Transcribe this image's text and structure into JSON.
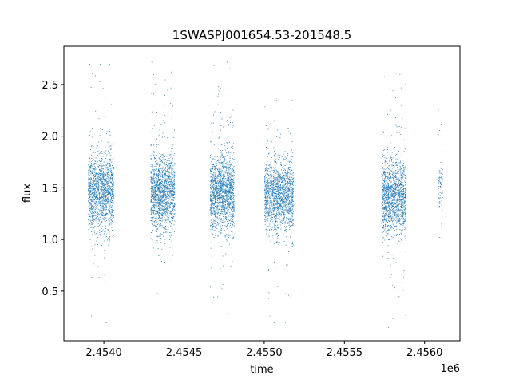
{
  "chart_data": {
    "type": "scatter",
    "title": "1SWASPJ001654.53-201548.5",
    "xlabel": "time",
    "ylabel": "flux",
    "x_offset_label": "1e6",
    "x_tick_labels": [
      "2.4540",
      "2.4545",
      "2.4550",
      "2.4555",
      "2.4560"
    ],
    "x_ticks": [
      2453999.5,
      2454499.5,
      2454999.5,
      2455499.5,
      2455999.5
    ],
    "y_ticks": [
      0.5,
      1.0,
      1.5,
      2.0,
      2.5
    ],
    "y_tick_labels": [
      "0.5",
      "1.0",
      "1.5",
      "2.0",
      "2.5"
    ],
    "xlim": [
      2453750,
      2456220
    ],
    "ylim": [
      0.02,
      2.87
    ],
    "grid": false,
    "point_color": "#1f77b4",
    "series": [
      {
        "segments": [
          {
            "t_start": 2453900,
            "t_end": 2454060,
            "center": 1.45,
            "spread": 0.22,
            "tail_max": 2.7,
            "tail_min": 0.15,
            "points": 1500
          },
          {
            "t_start": 2454290,
            "t_end": 2454440,
            "center": 1.45,
            "spread": 0.22,
            "tail_max": 2.72,
            "tail_min": 0.48,
            "points": 1500
          },
          {
            "t_start": 2454660,
            "t_end": 2454810,
            "center": 1.45,
            "spread": 0.22,
            "tail_max": 2.72,
            "tail_min": 0.28,
            "points": 1500
          },
          {
            "t_start": 2455000,
            "t_end": 2455180,
            "center": 1.42,
            "spread": 0.2,
            "tail_max": 2.35,
            "tail_min": 0.2,
            "points": 1500
          },
          {
            "t_start": 2455730,
            "t_end": 2455880,
            "center": 1.42,
            "spread": 0.22,
            "tail_max": 2.7,
            "tail_min": 0.15,
            "points": 1400
          },
          {
            "t_start": 2456080,
            "t_end": 2456110,
            "center": 1.5,
            "spread": 0.2,
            "tail_max": 2.5,
            "tail_min": 0.6,
            "points": 80
          }
        ]
      }
    ]
  }
}
